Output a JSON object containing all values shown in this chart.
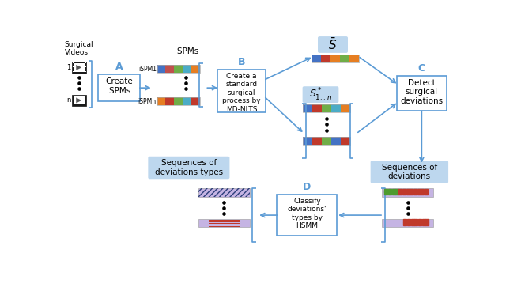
{
  "bg_color": "#ffffff",
  "blue_label": "#5b9bd5",
  "box_edge": "#5b9bd5",
  "box_face": "#ffffff",
  "light_blue_face": "#bdd7ee",
  "arrow_color": "#5b9bd5",
  "bar_colors_sbar": [
    "#4472c4",
    "#c0392b",
    "#e67e22",
    "#70ad47",
    "#e67e22"
  ],
  "bar_colors_ispm1": [
    "#4472c4",
    "#c0504d",
    "#70ad47",
    "#4bacc6",
    "#e67e22"
  ],
  "bar_colors_ispmn": [
    "#e67e22",
    "#c0392b",
    "#70ad47",
    "#4bacc6",
    "#c0392b"
  ],
  "bar_colors_s1": [
    "#4472c4",
    "#c0392b",
    "#70ad47",
    "#4bacc6",
    "#e67e22"
  ],
  "bar_colors_s2": [
    "#4472c4",
    "#c0392b",
    "#70ad47",
    "#4472c4",
    "#c0392b"
  ],
  "dev_bar_lavender": "#c5b4e3",
  "text_color": "#000000",
  "label_A": "A",
  "label_B": "B",
  "label_C": "C",
  "label_D": "D"
}
